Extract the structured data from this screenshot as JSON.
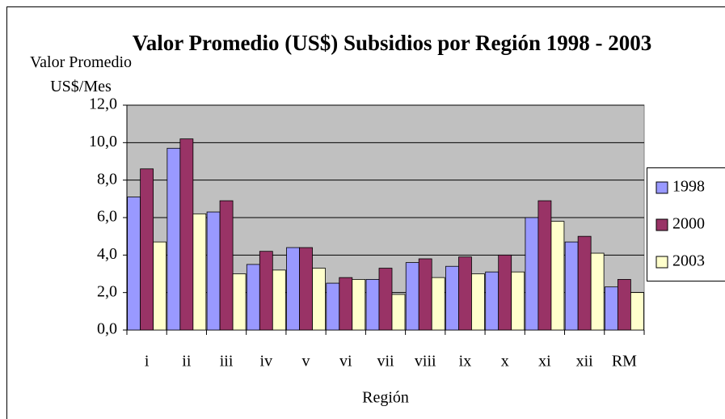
{
  "chart_data": {
    "type": "bar",
    "title": "Valor Promedio (US$) Subsidios por Región 1998 - 2003",
    "ylabel": "Valor Promedio US$/Mes",
    "xlabel": "Región",
    "categories": [
      "i",
      "ii",
      "iii",
      "iv",
      "v",
      "vi",
      "vii",
      "viii",
      "ix",
      "x",
      "xi",
      "xii",
      "RM"
    ],
    "series": [
      {
        "name": "1998",
        "color": "#9999ff",
        "values": [
          7.1,
          9.7,
          6.3,
          3.5,
          4.4,
          2.5,
          2.7,
          3.6,
          3.4,
          3.1,
          6.0,
          4.7,
          2.3
        ]
      },
      {
        "name": "2000",
        "color": "#993366",
        "values": [
          8.6,
          10.2,
          6.9,
          4.2,
          4.4,
          2.8,
          3.3,
          3.8,
          3.9,
          4.0,
          6.9,
          5.0,
          2.7
        ]
      },
      {
        "name": "2003",
        "color": "#ffffcc",
        "values": [
          4.7,
          6.2,
          3.0,
          3.2,
          3.3,
          2.7,
          1.9,
          2.8,
          3.0,
          3.1,
          5.8,
          4.1,
          2.0
        ]
      }
    ],
    "ylim": [
      0,
      12
    ],
    "yticks": [
      {
        "value": 0,
        "label": "0,0"
      },
      {
        "value": 2,
        "label": "2,0"
      },
      {
        "value": 4,
        "label": "4,0"
      },
      {
        "value": 6,
        "label": "6,0"
      },
      {
        "value": 8,
        "label": "8,0"
      },
      {
        "value": 10,
        "label": "10,0"
      },
      {
        "value": 12,
        "label": "12,0"
      }
    ],
    "grid": true,
    "plot_background": "#c0c0c0",
    "legend": "right"
  }
}
